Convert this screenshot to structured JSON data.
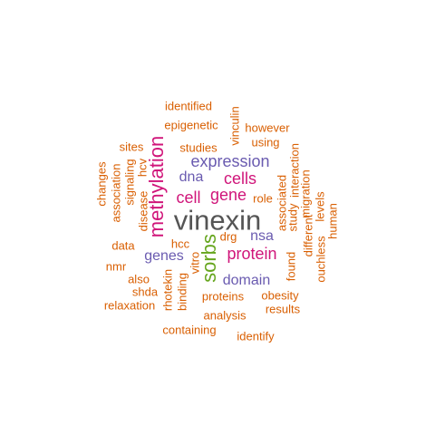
{
  "palette": {
    "dark_gray": "#555555",
    "magenta": "#d0157a",
    "green": "#66a61e",
    "purple": "#6a5bb0",
    "orange": "#d95f02"
  },
  "words": [
    {
      "text": "vinexin",
      "color": "dark_gray"
    },
    {
      "text": "methylation",
      "color": "magenta"
    },
    {
      "text": "sorbs",
      "color": "green"
    },
    {
      "text": "expression",
      "color": "purple"
    },
    {
      "text": "cells",
      "color": "magenta"
    },
    {
      "text": "cell",
      "color": "magenta"
    },
    {
      "text": "gene",
      "color": "magenta"
    },
    {
      "text": "protein",
      "color": "magenta"
    },
    {
      "text": "domain",
      "color": "purple"
    },
    {
      "text": "genes",
      "color": "purple"
    },
    {
      "text": "nsa",
      "color": "purple"
    },
    {
      "text": "dna",
      "color": "purple"
    },
    {
      "text": "identified",
      "color": "orange"
    },
    {
      "text": "epigenetic",
      "color": "orange"
    },
    {
      "text": "vinculin",
      "color": "orange"
    },
    {
      "text": "however",
      "color": "orange"
    },
    {
      "text": "using",
      "color": "orange"
    },
    {
      "text": "studies",
      "color": "orange"
    },
    {
      "text": "sites",
      "color": "orange"
    },
    {
      "text": "hcv",
      "color": "orange"
    },
    {
      "text": "signaling",
      "color": "orange"
    },
    {
      "text": "association",
      "color": "orange"
    },
    {
      "text": "changes",
      "color": "orange"
    },
    {
      "text": "disease",
      "color": "orange"
    },
    {
      "text": "data",
      "color": "orange"
    },
    {
      "text": "hcc",
      "color": "orange"
    },
    {
      "text": "drg",
      "color": "orange"
    },
    {
      "text": "role",
      "color": "orange"
    },
    {
      "text": "associated",
      "color": "orange"
    },
    {
      "text": "study",
      "color": "orange"
    },
    {
      "text": "interaction",
      "color": "orange"
    },
    {
      "text": "migration",
      "color": "orange"
    },
    {
      "text": "different",
      "color": "orange"
    },
    {
      "text": "levels",
      "color": "orange"
    },
    {
      "text": "human",
      "color": "orange"
    },
    {
      "text": "ouchless",
      "color": "orange"
    },
    {
      "text": "nmr",
      "color": "orange"
    },
    {
      "text": "also",
      "color": "orange"
    },
    {
      "text": "shda",
      "color": "orange"
    },
    {
      "text": "rhotekin",
      "color": "orange"
    },
    {
      "text": "binding",
      "color": "orange"
    },
    {
      "text": "vitro",
      "color": "orange"
    },
    {
      "text": "found",
      "color": "orange"
    },
    {
      "text": "relaxation",
      "color": "orange"
    },
    {
      "text": "proteins",
      "color": "orange"
    },
    {
      "text": "obesity",
      "color": "orange"
    },
    {
      "text": "results",
      "color": "orange"
    },
    {
      "text": "analysis",
      "color": "orange"
    },
    {
      "text": "containing",
      "color": "orange"
    },
    {
      "text": "identify",
      "color": "orange"
    }
  ]
}
